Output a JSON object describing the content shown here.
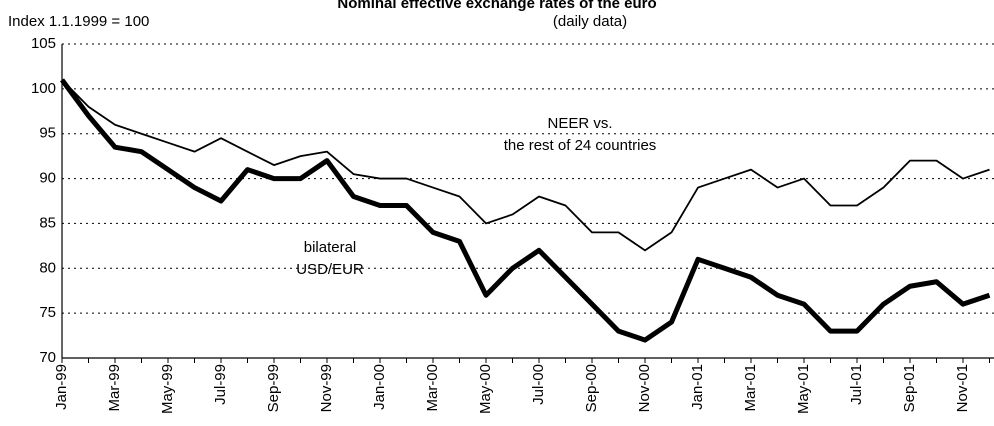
{
  "chart_data": {
    "type": "line",
    "title": "Nominal effective exchange rates of the euro",
    "subtitle": "(daily data)",
    "y_label": "Index 1.1.1999 = 100",
    "annotations": [
      "NEER vs.",
      "the rest of 24 countries",
      "bilateral",
      "USD/EUR"
    ],
    "categories": [
      "Jan-99",
      null,
      "Mar-99",
      null,
      "May-99",
      null,
      "Jul-99",
      null,
      "Sep-99",
      null,
      "Nov-99",
      null,
      "Jan-00",
      null,
      "Mar-00",
      null,
      "May-00",
      null,
      "Jul-00",
      null,
      "Sep-00",
      null,
      "Nov-00",
      null,
      "Jan-01",
      null,
      "Mar-01",
      null,
      "May-01",
      null,
      "Jul-01",
      null,
      "Sep-01",
      null,
      "Nov-01",
      null
    ],
    "series": [
      {
        "name": "NEER vs. the rest of 24 countries",
        "color": "#000000",
        "values": [
          101,
          98,
          96,
          95,
          94,
          93,
          94.5,
          93,
          91.5,
          92.5,
          93,
          90.5,
          90,
          90,
          89,
          88,
          85,
          86,
          88,
          87,
          84,
          84,
          82,
          84,
          89,
          90,
          91,
          89,
          90,
          87,
          87,
          89,
          92,
          92,
          90,
          91
        ]
      },
      {
        "name": "bilateral USD/EUR",
        "color": "#000000",
        "values": [
          101,
          97,
          93.5,
          93,
          91,
          89,
          87.5,
          91,
          90,
          90,
          92,
          88,
          87,
          87,
          84,
          83,
          77,
          80,
          82,
          79,
          76,
          73,
          72,
          74,
          81,
          80,
          79,
          77,
          76,
          73,
          73,
          76,
          78,
          78.5,
          76,
          77
        ]
      }
    ],
    "ylim": [
      70,
      105
    ],
    "yticks": [
      70,
      75,
      80,
      85,
      90,
      95,
      100,
      105
    ],
    "grid": true
  }
}
